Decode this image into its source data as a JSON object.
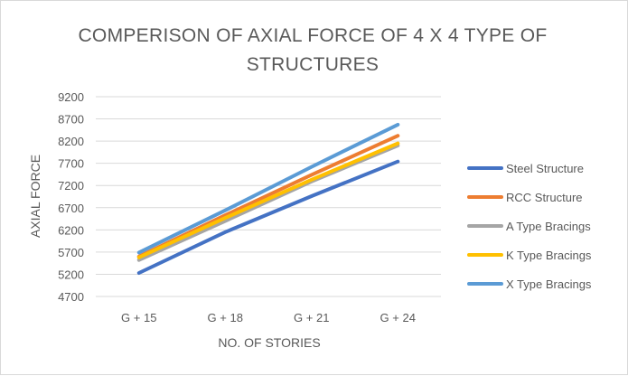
{
  "chart_data": {
    "type": "line",
    "title_lines": [
      "COMPERISON OF AXIAL FORCE OF 4 X 4 TYPE OF",
      "STRUCTURES"
    ],
    "xlabel": "NO. OF STORIES",
    "ylabel": "AXIAL FORCE",
    "categories": [
      "G + 15",
      "G + 18",
      "G + 21",
      "G + 24"
    ],
    "yticks": [
      4700,
      5200,
      5700,
      6200,
      6700,
      7200,
      7700,
      8200,
      8700,
      9200
    ],
    "ylim": [
      4700,
      9200
    ],
    "grid": true,
    "legend_position": "right",
    "series": [
      {
        "name": "Steel Structure",
        "color": "#4472C4",
        "values": [
          5230,
          6150,
          6960,
          7740
        ]
      },
      {
        "name": "RCC Structure",
        "color": "#ED7D31",
        "values": [
          5600,
          6530,
          7440,
          8320
        ]
      },
      {
        "name": "A Type Bracings",
        "color": "#A5A5A5",
        "values": [
          5520,
          6400,
          7290,
          8100
        ]
      },
      {
        "name": "K Type Bracings",
        "color": "#FFC000",
        "values": [
          5580,
          6470,
          7330,
          8150
        ]
      },
      {
        "name": "X Type Bracings",
        "color": "#5B9BD5",
        "values": [
          5690,
          6640,
          7620,
          8570
        ]
      }
    ]
  }
}
